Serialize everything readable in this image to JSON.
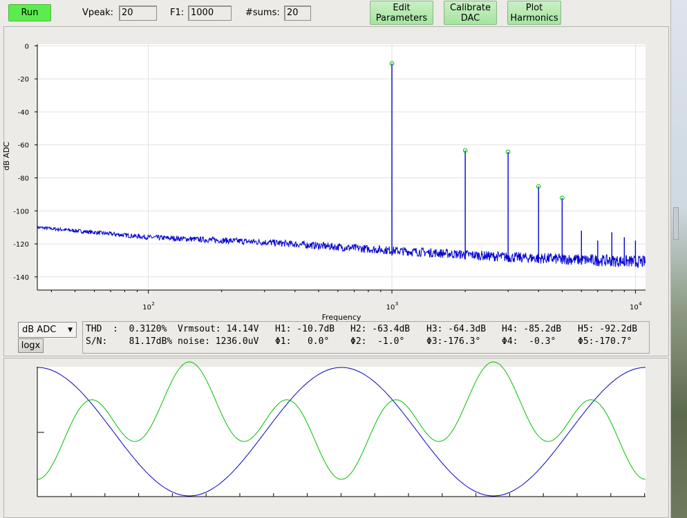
{
  "toolbar": {
    "run_label": "Run",
    "vpeak_label": "Vpeak:",
    "vpeak_value": "20",
    "f1_label": "F1:",
    "f1_value": "1000",
    "sums_label": "#sums:",
    "sums_value": "20",
    "edit_params_label": [
      "Edit",
      "Parameters"
    ],
    "calibrate_label": [
      "Calibrate",
      "DAC"
    ],
    "plot_harmonics_label": [
      "Plot",
      "Harmonics"
    ]
  },
  "spectrum": {
    "ylabel": "dB ADC",
    "xlabel": "Frequency",
    "y_ticks": [
      "0",
      "-20",
      "-40",
      "-60",
      "-80",
      "-100",
      "-120",
      "-140"
    ],
    "x_ticks": [
      {
        "base": "10",
        "exp": "2"
      },
      {
        "base": "10",
        "exp": "3"
      },
      {
        "base": "10",
        "exp": "4"
      }
    ]
  },
  "controls": {
    "scale_select": "dB ADC",
    "logx_label": "logx"
  },
  "stats": {
    "row1": [
      "THD  :  0.3120%",
      "Vrmsout: 14.14V",
      "H1: -10.7dB",
      "H2: -63.4dB",
      "H3: -64.3dB",
      "H4: -85.2dB",
      "H5: -92.2dB"
    ],
    "row2": [
      "S/N:    81.17dB%",
      "noise: 1236.0uV",
      "Φ1:   0.0°",
      "Φ2:  -1.0°",
      "Φ3:-176.3°",
      "Φ4:  -0.3°",
      "Φ5:-170.7°"
    ]
  },
  "chart_data": [
    {
      "type": "line",
      "title": "",
      "xlabel": "Frequency",
      "ylabel": "dB ADC",
      "xscale": "log",
      "xlim": [
        35,
        11000
      ],
      "ylim": [
        -148,
        1
      ],
      "grid": true,
      "series": [
        {
          "color": "#0000d0",
          "noise_floor": {
            "x": [
              35,
              100,
              300,
              1000,
              3000,
              11000
            ],
            "y": [
              -110,
              -116,
              -119,
              -124,
              -128,
              -131
            ]
          },
          "peaks": {
            "x": [
              1000,
              2000,
              3000,
              4000,
              5000,
              6000,
              7000,
              8000,
              9000,
              10000
            ],
            "y": [
              -10.7,
              -63.4,
              -64.3,
              -85.2,
              -92.2,
              -112,
              -118,
              -113,
              -116,
              -118
            ]
          }
        }
      ],
      "markers": {
        "color": "#00c000",
        "x": [
          1000,
          2000,
          3000,
          4000,
          5000
        ],
        "y": [
          -10.7,
          -63.4,
          -64.3,
          -85.2,
          -92.2
        ]
      }
    },
    {
      "type": "line",
      "title": "",
      "grid": false,
      "series": [
        {
          "color": "#0000c0",
          "description": "sine",
          "periods": 2
        },
        {
          "color": "#00c000",
          "description": "harmonic-rich waveform"
        }
      ]
    }
  ]
}
